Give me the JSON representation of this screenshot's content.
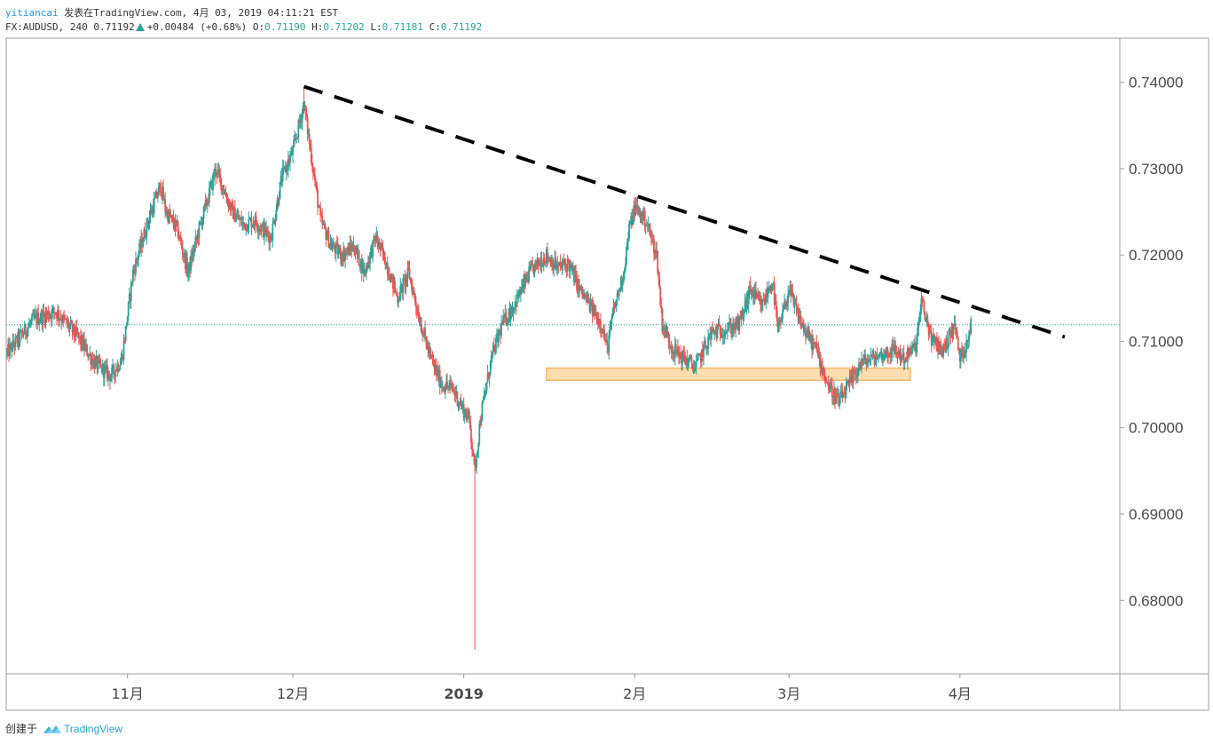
{
  "header": {
    "author": "yitiancai",
    "published": "发表在TradingView.com, 4月 03, 2019 04:11:21 EST",
    "symbol": "FX:AUDUSD, 240",
    "last": "0.71192",
    "change": "+0.00484 (+0.68%)",
    "o_label": "O:",
    "o_value": "0.71190",
    "h_label": "H:",
    "h_value": "0.71202",
    "l_label": "L:",
    "l_value": "0.71181",
    "c_label": "C:",
    "c_value": "0.71192"
  },
  "footer": {
    "created_with": "创建于",
    "brand": "TradingView"
  },
  "colors": {
    "up": "#26a69a",
    "down": "#ef5350",
    "trendline": "#000000",
    "zone_fill": "#ffd59e",
    "zone_border": "#f5b96a",
    "price_line": "#26a69a",
    "axis_text": "#4a4a4a"
  },
  "chart_data": {
    "type": "candlestick",
    "title": "",
    "xlabel": "",
    "ylabel": "",
    "ylim": [
      0.6715,
      0.7451
    ],
    "y_ticks": [
      "0.74000",
      "0.73000",
      "0.72000",
      "0.71000",
      "0.70000",
      "0.69000",
      "0.68000"
    ],
    "y_tick_values": [
      0.74,
      0.73,
      0.72,
      0.71,
      0.7,
      0.69,
      0.68
    ],
    "x_range": [
      "2018-10-10",
      "2019-04-30"
    ],
    "x_ticks": [
      {
        "date": "2018-11-01",
        "label": "11月",
        "bold": false
      },
      {
        "date": "2018-12-01",
        "label": "12月",
        "bold": false
      },
      {
        "date": "2019-01-01",
        "label": "2019",
        "bold": true
      },
      {
        "date": "2019-02-01",
        "label": "2月",
        "bold": false
      },
      {
        "date": "2019-03-01",
        "label": "3月",
        "bold": false
      },
      {
        "date": "2019-04-01",
        "label": "4月",
        "bold": false
      }
    ],
    "current_price": 0.71192,
    "trendline": {
      "start": [
        "2018-12-03",
        0.7395
      ],
      "end": [
        "2019-04-20",
        0.7105
      ],
      "style": "dashed"
    },
    "support_zone": {
      "start": "2019-01-16",
      "end": "2019-03-23",
      "low": 0.7055,
      "high": 0.7069
    },
    "price_path": [
      [
        "2018-10-10",
        0.7085
      ],
      [
        "2018-10-15",
        0.7125
      ],
      [
        "2018-10-19",
        0.7135
      ],
      [
        "2018-10-23",
        0.7105
      ],
      [
        "2018-10-26",
        0.7075
      ],
      [
        "2018-10-29",
        0.706
      ],
      [
        "2018-10-31",
        0.708
      ],
      [
        "2018-11-02",
        0.718
      ],
      [
        "2018-11-05",
        0.7245
      ],
      [
        "2018-11-07",
        0.728
      ],
      [
        "2018-11-08",
        0.725
      ],
      [
        "2018-11-10",
        0.723
      ],
      [
        "2018-11-12",
        0.718
      ],
      [
        "2018-11-14",
        0.723
      ],
      [
        "2018-11-16",
        0.7275
      ],
      [
        "2018-11-17",
        0.73
      ],
      [
        "2018-11-20",
        0.725
      ],
      [
        "2018-11-22",
        0.7235
      ],
      [
        "2018-11-24",
        0.724
      ],
      [
        "2018-11-27",
        0.722
      ],
      [
        "2018-11-29",
        0.729
      ],
      [
        "2018-12-01",
        0.732
      ],
      [
        "2018-12-03",
        0.7375
      ],
      [
        "2018-12-04",
        0.733
      ],
      [
        "2018-12-06",
        0.724
      ],
      [
        "2018-12-08",
        0.721
      ],
      [
        "2018-12-10",
        0.72
      ],
      [
        "2018-12-12",
        0.721
      ],
      [
        "2018-12-14",
        0.718
      ],
      [
        "2018-12-16",
        0.722
      ],
      [
        "2018-12-18",
        0.719
      ],
      [
        "2018-12-20",
        0.715
      ],
      [
        "2018-12-22",
        0.718
      ],
      [
        "2018-12-24",
        0.7125
      ],
      [
        "2018-12-26",
        0.708
      ],
      [
        "2018-12-28",
        0.705
      ],
      [
        "2018-12-30",
        0.7045
      ],
      [
        "2019-01-01",
        0.702
      ],
      [
        "2019-01-02",
        0.701
      ],
      [
        "2019-01-03",
        0.695
      ],
      [
        "2019-01-04",
        0.701
      ],
      [
        "2019-01-06",
        0.708
      ],
      [
        "2019-01-08",
        0.712
      ],
      [
        "2019-01-10",
        0.714
      ],
      [
        "2019-01-13",
        0.718
      ],
      [
        "2019-01-16",
        0.72
      ],
      [
        "2019-01-18",
        0.7185
      ],
      [
        "2019-01-20",
        0.719
      ],
      [
        "2019-01-22",
        0.716
      ],
      [
        "2019-01-24",
        0.714
      ],
      [
        "2019-01-26",
        0.712
      ],
      [
        "2019-01-27",
        0.709
      ],
      [
        "2019-01-28",
        0.713
      ],
      [
        "2019-01-30",
        0.718
      ],
      [
        "2019-01-31",
        0.723
      ],
      [
        "2019-02-01",
        0.7255
      ],
      [
        "2019-02-03",
        0.724
      ],
      [
        "2019-02-05",
        0.72
      ],
      [
        "2019-02-06",
        0.712
      ],
      [
        "2019-02-08",
        0.709
      ],
      [
        "2019-02-10",
        0.708
      ],
      [
        "2019-02-12",
        0.707
      ],
      [
        "2019-02-15",
        0.711
      ],
      [
        "2019-02-18",
        0.7115
      ],
      [
        "2019-02-20",
        0.712
      ],
      [
        "2019-02-22",
        0.716
      ],
      [
        "2019-02-24",
        0.714
      ],
      [
        "2019-02-26",
        0.717
      ],
      [
        "2019-02-27",
        0.711
      ],
      [
        "2019-03-01",
        0.716
      ],
      [
        "2019-03-02",
        0.714
      ],
      [
        "2019-03-04",
        0.711
      ],
      [
        "2019-03-06",
        0.709
      ],
      [
        "2019-03-08",
        0.705
      ],
      [
        "2019-03-10",
        0.703
      ],
      [
        "2019-03-12",
        0.705
      ],
      [
        "2019-03-14",
        0.7075
      ],
      [
        "2019-03-16",
        0.708
      ],
      [
        "2019-03-18",
        0.7085
      ],
      [
        "2019-03-20",
        0.709
      ],
      [
        "2019-03-22",
        0.708
      ],
      [
        "2019-03-24",
        0.7095
      ],
      [
        "2019-03-25",
        0.7145
      ],
      [
        "2019-03-27",
        0.71
      ],
      [
        "2019-03-29",
        0.709
      ],
      [
        "2019-03-31",
        0.712
      ],
      [
        "2019-04-01",
        0.708
      ],
      [
        "2019-04-02",
        0.7095
      ],
      [
        "2019-04-03",
        0.71192
      ]
    ]
  }
}
